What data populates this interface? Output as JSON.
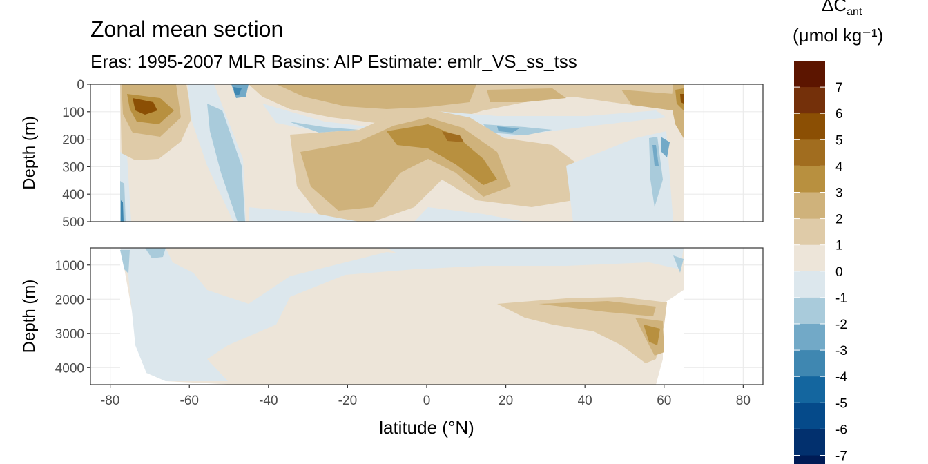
{
  "title": "Zonal mean section",
  "subtitle": "Eras: 1995-2007 MLR Basins: AIP Estimate: emlr_VS_ss_tss",
  "legend": {
    "symbol": "ΔC",
    "symbol_subscript": "ant",
    "unit": "(μmol kg⁻¹)",
    "breaks": [
      "7",
      "6",
      "5",
      "4",
      "3",
      "2",
      "1",
      "0",
      "-1",
      "-2",
      "-3",
      "-4",
      "-5",
      "-6",
      "-7"
    ],
    "colors": [
      "#5c1500",
      "#74300a",
      "#8b4f04",
      "#a16d1f",
      "#b8903f",
      "#cfb27b",
      "#dfcba8",
      "#ede5d9",
      "#dce7ed",
      "#a9cbdb",
      "#72a9c7",
      "#3f87b1",
      "#14669f",
      "#054a8a",
      "#02306e",
      "#001b55"
    ]
  },
  "chart_data": {
    "type": "heatmap",
    "xlabel": "latitude (°N)",
    "xlim": [
      -85,
      85
    ],
    "x_ticks": [
      "-80",
      "-60",
      "-40",
      "-20",
      "0",
      "20",
      "40",
      "60",
      "80"
    ],
    "panels": [
      {
        "ylabel": "Depth (m)",
        "ylim": [
          0,
          500
        ],
        "y_ticks": [
          "0",
          "100",
          "200",
          "300",
          "400",
          "500"
        ],
        "y_reversed": true,
        "approx_field": [
          {
            "lat": -78,
            "depth": 400,
            "value": -3
          },
          {
            "lat": -70,
            "depth": 75,
            "value": 5
          },
          {
            "lat": -55,
            "depth": 250,
            "value": -1
          },
          {
            "lat": -48,
            "depth": 50,
            "value": -2
          },
          {
            "lat": -20,
            "depth": 40,
            "value": 3
          },
          {
            "lat": -22,
            "depth": 350,
            "value": 3
          },
          {
            "lat": -7,
            "depth": 200,
            "value": 3
          },
          {
            "lat": 12,
            "depth": 200,
            "value": 4
          },
          {
            "lat": 25,
            "depth": 350,
            "value": 3
          },
          {
            "lat": 32,
            "depth": 180,
            "value": -2
          },
          {
            "lat": 57,
            "depth": 230,
            "value": -2
          },
          {
            "lat": 63,
            "depth": 60,
            "value": 4
          }
        ]
      },
      {
        "ylabel": "Depth (m)",
        "ylim": [
          500,
          4500
        ],
        "y_ticks": [
          "1000",
          "2000",
          "3000",
          "4000"
        ],
        "y_reversed": true,
        "approx_field": [
          {
            "lat": -70,
            "depth": 2500,
            "value": -1
          },
          {
            "lat": -45,
            "depth": 1000,
            "value": -1
          },
          {
            "lat": 0,
            "depth": 2500,
            "value": 0.5
          },
          {
            "lat": 50,
            "depth": 2200,
            "value": 1.5
          },
          {
            "lat": 56,
            "depth": 3000,
            "value": 2.5
          }
        ]
      }
    ]
  }
}
